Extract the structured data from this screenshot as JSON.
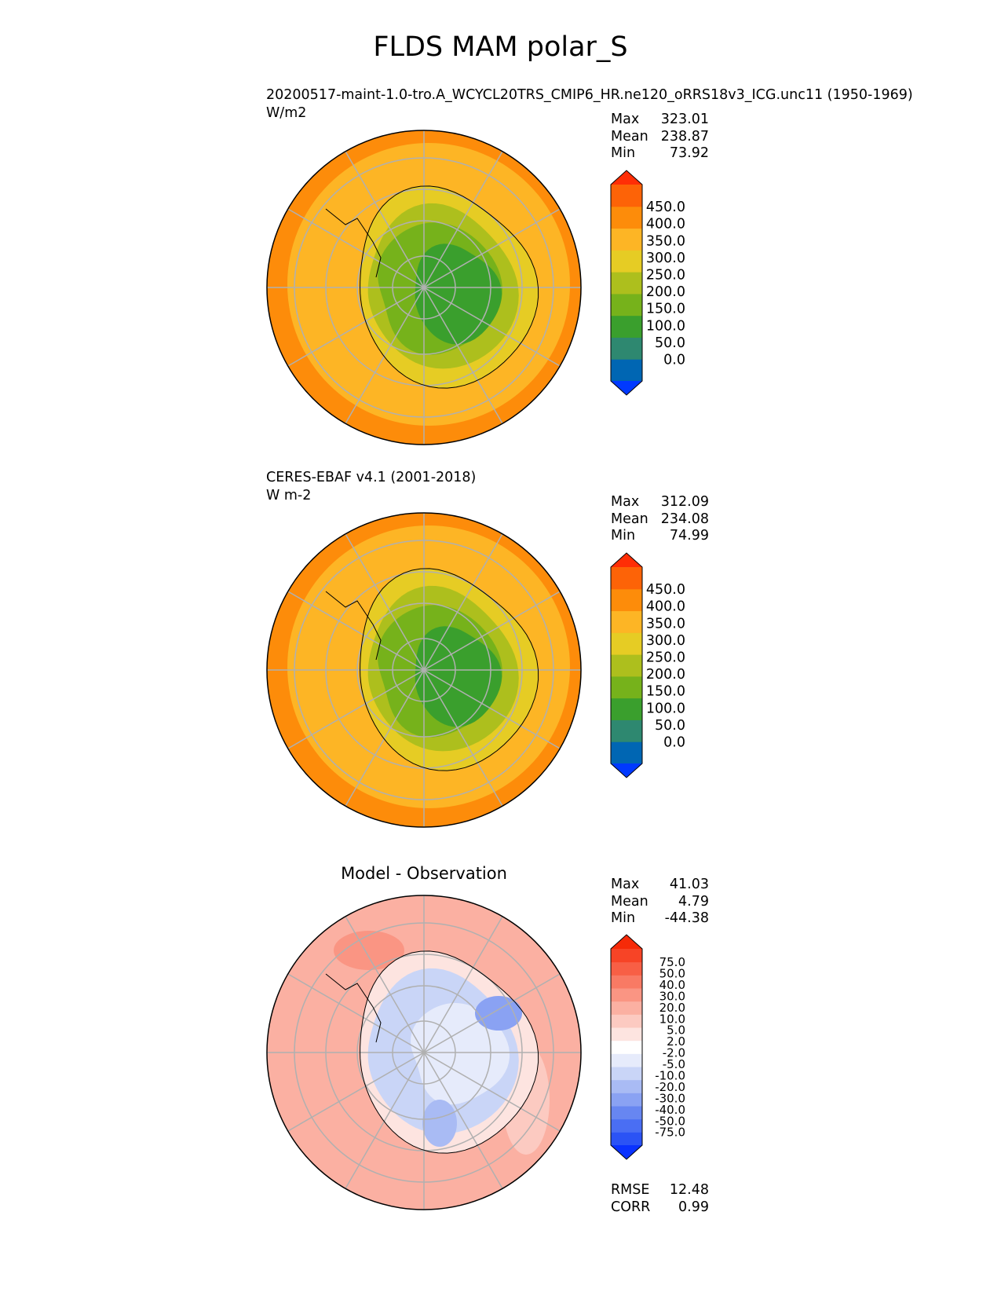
{
  "figure": {
    "title": "FLDS MAM polar_S"
  },
  "colors": {
    "abs_levels": [
      "#0039ff",
      "#0066b3",
      "#2e8870",
      "#3a9f2d",
      "#76b21b",
      "#adbf1d",
      "#e6cc24",
      "#fdb525",
      "#fd8c0a",
      "#fd6307",
      "#ff2e06"
    ],
    "diff_levels": [
      "#0a32ff",
      "#2b53f5",
      "#4a6ef3",
      "#6786f1",
      "#8aa2f3",
      "#a9bbf4",
      "#c9d5f7",
      "#e6ebfb",
      "#ffffff",
      "#fde4e0",
      "#fccac1",
      "#fbb0a2",
      "#fa9583",
      "#f97a64",
      "#f85f45",
      "#f74426",
      "#f62a08"
    ],
    "grid": "#b0b0b0",
    "coast": "#000000"
  },
  "chart_data": [
    {
      "type": "heatmap",
      "projection": "south-polar-stereographic",
      "title": "20200517-maint-1.0-tro.A_WCYCL20TRS_CMIP6_HR.ne120_oRRS18v3_ICG.unc11 (1950-1969)",
      "units": "W/m2",
      "stats": {
        "max_label": "Max",
        "max": "323.01",
        "mean_label": "Mean",
        "mean": "238.87",
        "min_label": "Min",
        "min": "73.92"
      },
      "colorbar": {
        "ticks": [
          "450.0",
          "400.0",
          "350.0",
          "300.0",
          "250.0",
          "200.0",
          "150.0",
          "100.0",
          "50.0",
          "0.0"
        ],
        "levels": [
          0,
          25,
          50,
          100,
          150,
          200,
          250,
          300,
          350,
          400,
          450
        ],
        "extend": "both"
      },
      "regions": {
        "ocean_far": 330,
        "ocean_mid": 275,
        "coast_belt": 215,
        "ice_edge": 175,
        "plateau": 95
      }
    },
    {
      "type": "heatmap",
      "projection": "south-polar-stereographic",
      "title": "CERES-EBAF v4.1 (2001-2018)",
      "units": "W m-2",
      "stats": {
        "max_label": "Max",
        "max": "312.09",
        "mean_label": "Mean",
        "mean": "234.08",
        "min_label": "Min",
        "min": "74.99"
      },
      "colorbar": {
        "ticks": [
          "450.0",
          "400.0",
          "350.0",
          "300.0",
          "250.0",
          "200.0",
          "150.0",
          "100.0",
          "50.0",
          "0.0"
        ],
        "levels": [
          0,
          25,
          50,
          100,
          150,
          200,
          250,
          300,
          350,
          400,
          450
        ],
        "extend": "both"
      },
      "regions": {
        "ocean_far": 310,
        "ocean_mid": 270,
        "coast_belt": 215,
        "ice_edge": 175,
        "plateau": 95
      }
    },
    {
      "type": "heatmap",
      "projection": "south-polar-stereographic",
      "title": "Model - Observation",
      "stats": {
        "max_label": "Max",
        "max": "41.03",
        "mean_label": "Mean",
        "mean": "4.79",
        "min_label": "Min",
        "min": "-44.38"
      },
      "metrics": {
        "rmse_label": "RMSE",
        "rmse": "12.48",
        "corr_label": "CORR",
        "corr": "0.99"
      },
      "colorbar": {
        "ticks": [
          "75.0",
          "50.0",
          "40.0",
          "30.0",
          "20.0",
          "10.0",
          "5.0",
          "2.0",
          "-2.0",
          "-5.0",
          "-10.0",
          "-20.0",
          "-30.0",
          "-40.0",
          "-50.0",
          "-75.0"
        ],
        "levels": [
          -75,
          -50,
          -40,
          -30,
          -20,
          -10,
          -5,
          -2,
          2,
          5,
          10,
          20,
          30,
          40,
          50,
          75
        ],
        "extend": "both"
      }
    }
  ]
}
